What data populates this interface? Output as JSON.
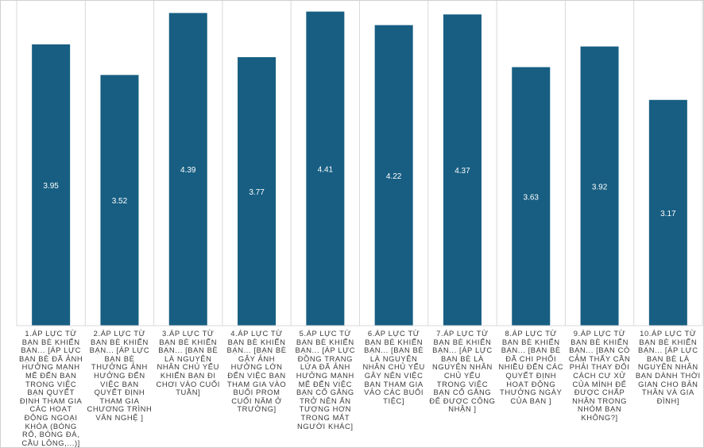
{
  "chart_data": {
    "type": "bar",
    "bar_color": "#175e82",
    "grid_color": "#d9d9d9",
    "label_color": "#ffffff",
    "ylim": [
      0,
      4.45
    ],
    "categories": [
      "1.ÁP LỰC TỪ BẠN BÈ KHIẾN BẠN... [ÁP LỰC BẠN BÈ ĐÃ ẢNH HƯỞNG MẠNH MẼ ĐẾN BẠN TRONG VIỆC BẠN QUYẾT ĐỊNH THAM GIA CÁC HOẠT ĐỘNG NGOẠI KHÓA (BÓNG RỔ, BÓNG ĐÁ, CẦU LÔNG,...)]",
      "2.ÁP LỰC TỪ BẠN BÈ KHIẾN BẠN... [ÁP LỰC BẠN BÈ THƯỜNG ẢNH HƯỞNG ĐẾN VIỆC BẠN QUYẾT ĐỊNH THAM GIA CHƯƠNG TRÌNH VĂN NGHỆ ]",
      "3.ÁP LỰC TỪ BẠN BÈ KHIẾN BẠN... [BẠN BÈ LÀ NGUYÊN NHÂN CHỦ YẾU KHIẾN BẠN ĐI CHƠI VÀO CUỐI TUẦN]",
      "4.ÁP LỰC TỪ BẠN BÈ KHIẾN BẠN... [BẠN BÈ GÂY ẢNH HƯỞNG LỚN ĐẾN VIỆC BẠN THAM GIA VÀO BUỔI PROM CUỐI NĂM Ở TRƯỜNG]",
      "5.ÁP LỰC TỪ BẠN BÈ KHIẾN BẠN... [ÁP LỰC ĐỒNG TRANG LỨA ĐÃ ẢNH HƯỞNG MẠNH MẼ ĐẾN VIỆC BẠN CỐ GẮNG TRỞ NÊN ẤN TƯỢNG HƠN TRONG MẮT NGƯỜI KHÁC]",
      "6.ÁP LỰC TỪ BẠN BÈ KHIẾN BẠN... [BẠN BÈ LÀ NGUYÊN NHÂN CHỦ YẾU GÂY NÊN VIỆC BẠN THAM GIA VÀO CÁC BUỔI TIỆC]",
      "7.ÁP LỰC TỪ BẠN BÈ KHIẾN BẠN... [ÁP LỰC BẠN BÈ LÀ NGUYÊN NHÂN CHỦ YẾU TRONG VIỆC BẠN CỐ GẮNG ĐỂ ĐƯỢC CÔNG NHẬN ]",
      "8.ÁP LỰC TỪ BẠN BÈ KHIẾN BẠN... [BẠN BÈ ĐÃ CHI PHỐI NHIỀU ĐẾN CÁC QUYẾT ĐỊNH HOẠT ĐỘNG THƯỜNG NGÀY CỦA BẠN ]",
      "9.ÁP LỰC TỪ BẠN BÈ KHIẾN BẠN... [BẠN CÓ CẢM THẤY CẦN PHẢI THAY ĐỔI CÁCH CƯ XỬ CỦA MÌNH ĐỂ ĐƯỢC CHẤP NHẬN TRONG NHÓM BẠN KHÔNG?]",
      "10.ÁP LỰC TỪ BẠN BÈ KHIẾN BẠN... [ÁP LỰC BẠN BÈ LÀ NGUYÊN NHÂN BẠN DÀNH THỜI GIAN CHO BẢN THÂN VÀ GIA ĐÌNH]"
    ],
    "values": [
      3.95,
      3.52,
      4.39,
      3.77,
      4.41,
      4.22,
      4.37,
      3.63,
      3.92,
      3.17
    ],
    "value_labels": [
      "3.95",
      "3.52",
      "4.39",
      "3.77",
      "4.41",
      "4.22",
      "4.37",
      "3.63",
      "3.92",
      "3.17"
    ]
  }
}
